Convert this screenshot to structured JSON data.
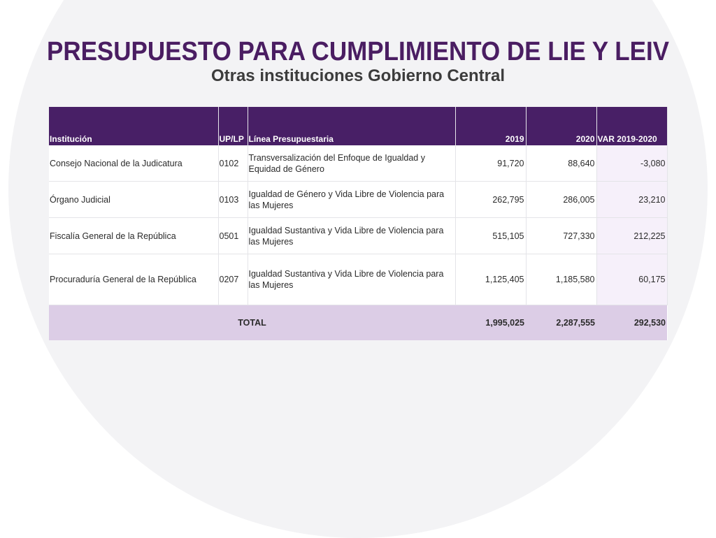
{
  "slide": {
    "title": "PRESUPUESTO PARA CUMPLIMIENTO DE LIE Y LEIV",
    "subtitle": "Otras instituciones Gobierno Central"
  },
  "table": {
    "headers": {
      "institucion": "Institución",
      "uplp": "UP/LP",
      "linea": "Línea Presupuestaria",
      "y2019": "2019",
      "y2020": "2020",
      "var": "VAR 2019-2020"
    },
    "rows": [
      {
        "institucion": "Consejo Nacional de la Judicatura",
        "uplp": "0102",
        "linea": "Transversalización del Enfoque de Igualdad y Equidad de Género",
        "y2019": "91,720",
        "y2020": "88,640",
        "var": "-3,080"
      },
      {
        "institucion": "Órgano Judicial",
        "uplp": "0103",
        "linea": "Igualdad de Género y Vida Libre de Violencia para las Mujeres",
        "y2019": "262,795",
        "y2020": "286,005",
        "var": "23,210"
      },
      {
        "institucion": "Fiscalía General de la República",
        "uplp": "0501",
        "linea": "Igualdad Sustantiva y Vida Libre de Violencia para las Mujeres",
        "y2019": "515,105",
        "y2020": "727,330",
        "var": "212,225"
      },
      {
        "institucion": "Procuraduría General de la República",
        "uplp": "0207",
        "linea": "Igualdad Sustantiva y Vida Libre de Violencia para las Mujeres",
        "y2019": "1,125,405",
        "y2020": "1,185,580",
        "var": "60,175"
      }
    ],
    "total": {
      "label": "TOTAL",
      "y2019": "1,995,025",
      "y2020": "2,287,555",
      "var": "292,530"
    }
  },
  "colors": {
    "title": "#4a1d62",
    "header_bg": "#481f66",
    "total_bg": "#dccde6",
    "var_col_bg": "#f6f0fa",
    "background_circle": "#f3f3f5"
  }
}
